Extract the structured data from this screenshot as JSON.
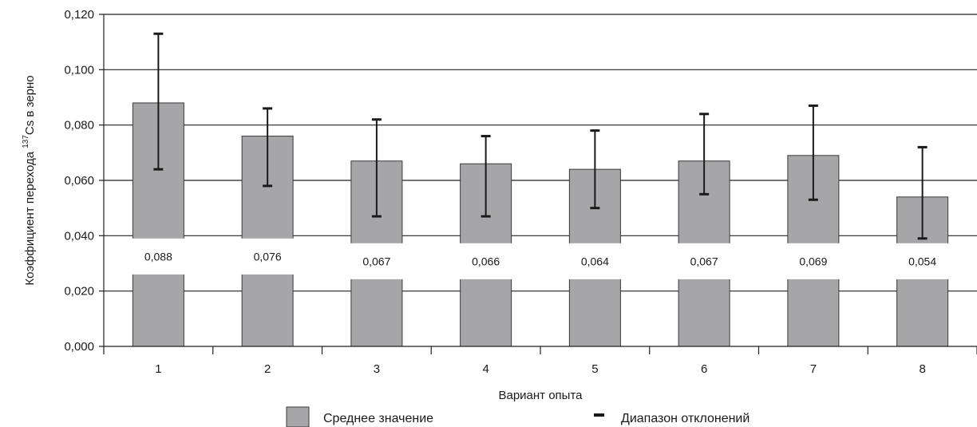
{
  "chart_data": {
    "type": "bar",
    "categories": [
      "1",
      "2",
      "3",
      "4",
      "5",
      "6",
      "7",
      "8"
    ],
    "series": [
      {
        "name": "Среднее значение",
        "values": [
          0.088,
          0.076,
          0.067,
          0.066,
          0.064,
          0.067,
          0.069,
          0.054
        ],
        "value_labels": [
          "0,088",
          "0,076",
          "0,067",
          "0,066",
          "0,064",
          "0,067",
          "0,069",
          "0,054"
        ]
      }
    ],
    "error_bars": {
      "name": "Диапазон отклонений",
      "low": [
        0.064,
        0.058,
        0.047,
        0.047,
        0.05,
        0.055,
        0.053,
        0.039
      ],
      "high": [
        0.113,
        0.086,
        0.082,
        0.076,
        0.078,
        0.084,
        0.087,
        0.072
      ]
    },
    "xlabel": "Вариант опыта",
    "ylabel_main": "Коэффициент перехода ",
    "ylabel_sup": "137",
    "ylabel_tail": "Cs в зерно",
    "ylim": [
      0,
      0.12
    ],
    "yticks": [
      0,
      0.02,
      0.04,
      0.06,
      0.08,
      0.1,
      0.12
    ],
    "ytick_labels": [
      "0,000",
      "0,020",
      "0,040",
      "0,060",
      "0,080",
      "0,100",
      "0,120"
    ],
    "grid": true,
    "legend_position": "bottom",
    "colors": {
      "bar": "#a6a6a8",
      "bar_stroke": "#3a3a3a",
      "grid": "#222222",
      "error": "#1a1a1a"
    }
  }
}
